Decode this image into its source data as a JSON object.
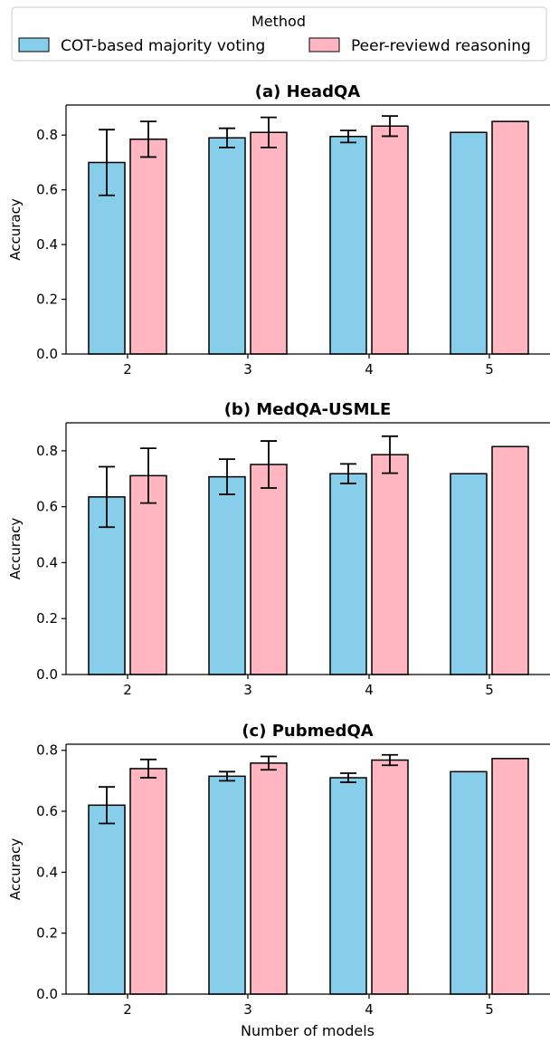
{
  "legend": {
    "title": "Method",
    "entries": [
      {
        "label": "COT-based majority voting",
        "color": "#87CEEB"
      },
      {
        "label": "Peer-reviewd reasoning",
        "color": "#FFB6C1"
      }
    ]
  },
  "xlabel": "Number of models",
  "ylabel": "Accuracy",
  "chart_data": [
    {
      "type": "bar",
      "title": "(a) HeadQA",
      "categories": [
        "2",
        "3",
        "4",
        "5"
      ],
      "ylabel": "Accuracy",
      "ylim": [
        0,
        0.91
      ],
      "yticks": [
        "0.0",
        "0.2",
        "0.4",
        "0.6",
        "0.8"
      ],
      "series": [
        {
          "name": "COT-based majority voting",
          "values": [
            0.7,
            0.79,
            0.795,
            0.81
          ],
          "errors": [
            0.12,
            0.035,
            0.022,
            0
          ]
        },
        {
          "name": "Peer-reviewd reasoning",
          "values": [
            0.785,
            0.81,
            0.833,
            0.85
          ],
          "errors": [
            0.065,
            0.055,
            0.037,
            0
          ]
        }
      ]
    },
    {
      "type": "bar",
      "title": "(b) MedQA-USMLE",
      "categories": [
        "2",
        "3",
        "4",
        "5"
      ],
      "ylabel": "Accuracy",
      "ylim": [
        0,
        0.9
      ],
      "yticks": [
        "0.0",
        "0.2",
        "0.4",
        "0.6",
        "0.8"
      ],
      "series": [
        {
          "name": "COT-based majority voting",
          "values": [
            0.635,
            0.707,
            0.718,
            0.718
          ],
          "errors": [
            0.108,
            0.063,
            0.035,
            0
          ]
        },
        {
          "name": "Peer-reviewd reasoning",
          "values": [
            0.711,
            0.751,
            0.786,
            0.815
          ],
          "errors": [
            0.098,
            0.084,
            0.066,
            0
          ]
        }
      ]
    },
    {
      "type": "bar",
      "title": "(c) PubmedQA",
      "categories": [
        "2",
        "3",
        "4",
        "5"
      ],
      "xlabel": "Number of models",
      "ylabel": "Accuracy",
      "ylim": [
        0,
        0.82
      ],
      "yticks": [
        "0.0",
        "0.2",
        "0.4",
        "0.6",
        "0.8"
      ],
      "series": [
        {
          "name": "COT-based majority voting",
          "values": [
            0.62,
            0.715,
            0.71,
            0.73
          ],
          "errors": [
            0.06,
            0.015,
            0.015,
            0
          ]
        },
        {
          "name": "Peer-reviewd reasoning",
          "values": [
            0.74,
            0.758,
            0.768,
            0.773
          ],
          "errors": [
            0.03,
            0.022,
            0.017,
            0
          ]
        }
      ]
    }
  ]
}
